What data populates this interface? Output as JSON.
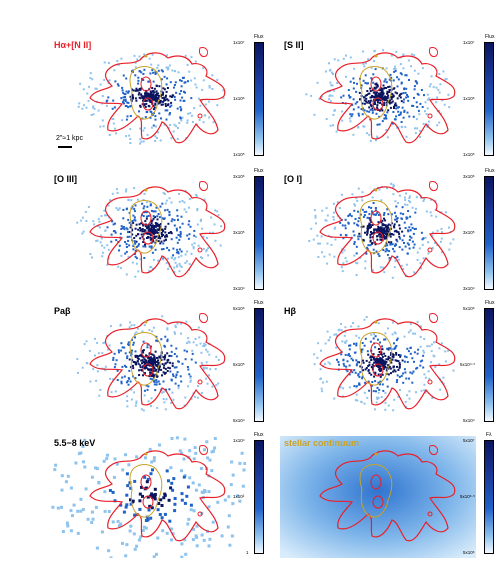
{
  "panels": [
    {
      "label": "Hα+[N II]",
      "label_color": "#e8202a",
      "cbar": {
        "title": "Flux",
        "top": "1x10⁷",
        "mid": "1x10⁶",
        "bot": "1x10⁵"
      }
    },
    {
      "label": "[S II]",
      "label_color": "#000000",
      "cbar": {
        "title": "Flux",
        "top": "1x10⁷",
        "mid": "1x10⁶",
        "bot": "1x10⁵"
      }
    },
    {
      "label": "[O III]",
      "label_color": "#000000",
      "cbar": {
        "title": "Flux",
        "top": "3x10⁶",
        "mid": "3x10⁵",
        "bot": "3x10⁴"
      }
    },
    {
      "label": "[O I]",
      "label_color": "#000000",
      "cbar": {
        "title": "Flux",
        "top": "3x10⁶",
        "mid": "3x10⁵",
        "bot": "3x10⁴"
      }
    },
    {
      "label": "Paβ",
      "label_color": "#000000",
      "cbar": {
        "title": "Flux",
        "top": "5x10⁶",
        "mid": "5x10⁵",
        "bot": "5x10⁴"
      }
    },
    {
      "label": "Hβ",
      "label_color": "#000000",
      "cbar": {
        "title": "Flux",
        "top": "5x10⁶",
        "mid": "5x10⁴·⁵",
        "bot": "5x10⁴"
      }
    },
    {
      "label": "5.5−8 keV",
      "label_color": "#000000",
      "cbar": {
        "title": "Flux",
        "top": "1x10⁴",
        "mid": "1x10²",
        "bot": "1"
      }
    },
    {
      "label": "stellar continuum",
      "label_color": "#c9a227",
      "cbar": {
        "title": "Fλ",
        "top": "5x10⁷",
        "mid": "5x10⁶·⁵",
        "bot": "5x10⁶"
      }
    }
  ],
  "scale": {
    "text": "2\"≈1 kpc"
  },
  "colors": {
    "contour_red": "#e8202a",
    "contour_gold": "#c9a227",
    "map_dark": "#0a1560",
    "map_mid": "#1f62c8",
    "map_light": "#8ec3ee"
  }
}
